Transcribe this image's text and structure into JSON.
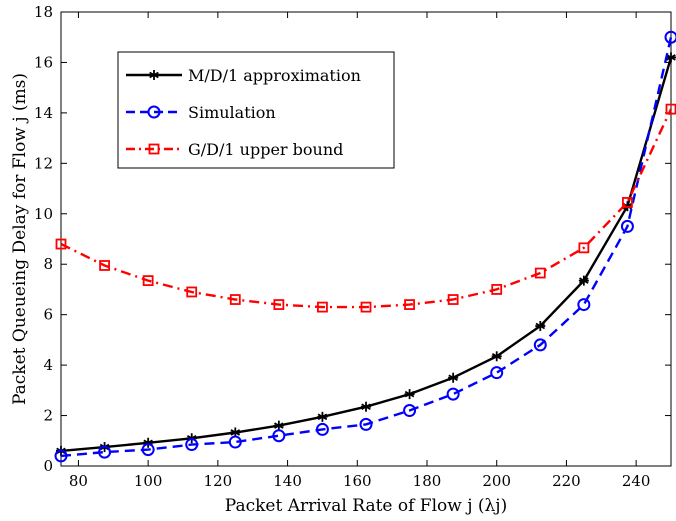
{
  "chart_data": {
    "type": "line",
    "xlabel": "Packet Arrival Rate of Flow j (λj)",
    "ylabel": "Packet Queueing Delay for Flow j (ms)",
    "xlim": [
      75,
      250
    ],
    "ylim": [
      0,
      18
    ],
    "xticks": [
      80,
      100,
      120,
      140,
      160,
      180,
      200,
      220,
      240
    ],
    "yticks": [
      0,
      2,
      4,
      6,
      8,
      10,
      12,
      14,
      16,
      18
    ],
    "grid": false,
    "legend_position": "top-left",
    "series": [
      {
        "name": "M/D/1 approximation",
        "color": "#000000",
        "line_style": "solid",
        "marker": "asterisk",
        "x": [
          75,
          87.5,
          100,
          112.5,
          125,
          137.5,
          150,
          162.5,
          175,
          187.5,
          200,
          212.5,
          225,
          237.5,
          250
        ],
        "y": [
          0.6,
          0.75,
          0.92,
          1.1,
          1.33,
          1.6,
          1.95,
          2.35,
          2.85,
          3.5,
          4.35,
          5.55,
          7.35,
          10.3,
          16.2
        ]
      },
      {
        "name": "Simulation",
        "color": "#0000ff",
        "line_style": "dashed",
        "marker": "circle",
        "x": [
          75,
          87.5,
          100,
          112.5,
          125,
          137.5,
          150,
          162.5,
          175,
          187.5,
          200,
          212.5,
          225,
          237.5,
          250
        ],
        "y": [
          0.4,
          0.55,
          0.65,
          0.85,
          0.95,
          1.2,
          1.45,
          1.65,
          2.2,
          2.85,
          3.7,
          4.8,
          6.4,
          9.5,
          17.0
        ]
      },
      {
        "name": "G/D/1 upper bound",
        "color": "#ff0000",
        "line_style": "dashdot",
        "marker": "square",
        "x": [
          75,
          87.5,
          100,
          112.5,
          125,
          137.5,
          150,
          162.5,
          175,
          187.5,
          200,
          212.5,
          225,
          237.5,
          250
        ],
        "y": [
          8.8,
          7.95,
          7.35,
          6.9,
          6.6,
          6.4,
          6.3,
          6.3,
          6.4,
          6.6,
          7.0,
          7.65,
          8.65,
          10.45,
          14.15
        ]
      }
    ]
  }
}
